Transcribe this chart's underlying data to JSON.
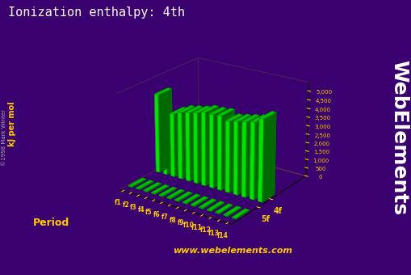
{
  "title": "Ionization enthalpy: 4th",
  "ylabel": "kJ per mol",
  "xlabel_groups": [
    "f1",
    "f2",
    "f3",
    "f4",
    "f5",
    "f6",
    "f7",
    "f8",
    "f9",
    "f10",
    "f11",
    "f12",
    "f13",
    "f14"
  ],
  "period_labels": [
    "4f",
    "5f"
  ],
  "watermark": "www.webelements.com",
  "credit": "©1998 Mark Winter",
  "webelements_text": "WebElements",
  "background_color": "#3a0070",
  "bar_color_face": "#00ff00",
  "bar_color_dark": "#007700",
  "floor_color": "#555566",
  "yticks": [
    0,
    500,
    1000,
    1500,
    2000,
    2500,
    3000,
    3500,
    4000,
    4500,
    5000
  ],
  "ylim": [
    0,
    5000
  ],
  "values_4f": [
    4600,
    3300,
    3700,
    3900,
    4000,
    4100,
    4250,
    4250,
    4300,
    4100,
    4200,
    4300,
    4400,
    4700
  ],
  "values_5f": [
    500,
    500,
    500,
    500,
    500,
    500,
    500,
    500,
    500,
    500,
    500,
    500,
    500,
    500
  ],
  "box_color": "#cc9900",
  "title_color": "#ffffff",
  "label_color": "#ffcc00",
  "period_label_color": "#ffcc00",
  "axis_label_color": "#ffcc00"
}
